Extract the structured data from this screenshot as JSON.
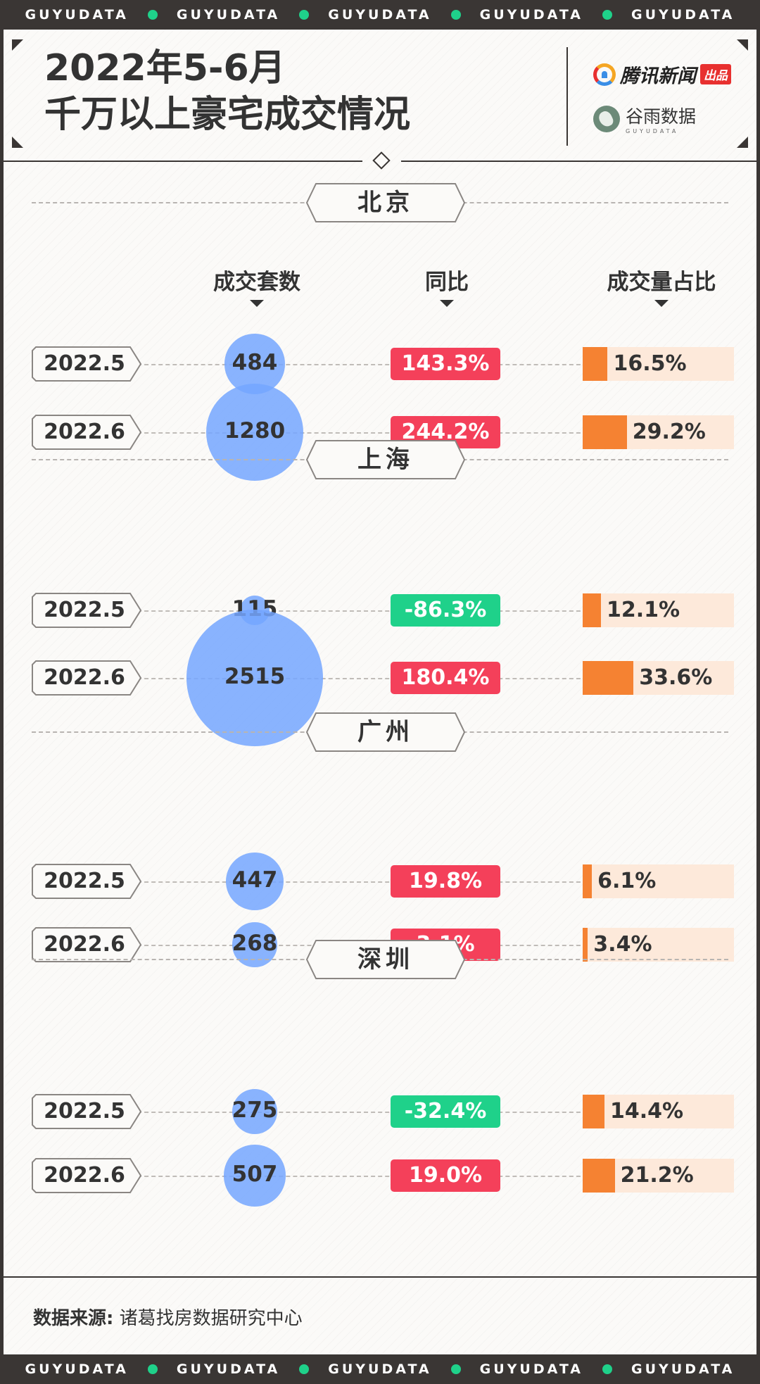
{
  "band_text": "GUYUDATA",
  "header": {
    "title_line1": "2022年5-6月",
    "title_line2": "千万以上豪宅成交情况",
    "brand1_name": "腾讯新闻",
    "brand1_tag": "出品",
    "brand2_name": "谷雨数据",
    "brand2_sub": "GUYUDATA"
  },
  "columns": {
    "count": "成交套数",
    "yoy": "同比",
    "share": "成交量占比"
  },
  "colors": {
    "positive": "#f4405a",
    "negative": "#1fd18a",
    "bubble": "#74a6ff",
    "share_fill": "#f58232",
    "share_bg": "#fde9da"
  },
  "chart_data": {
    "type": "table",
    "cities": [
      {
        "name": "北京",
        "rows": [
          {
            "month": "2022.5",
            "count": 484,
            "count_label": "484",
            "yoy": 143.3,
            "yoy_label": "143.3%",
            "share": 16.5,
            "share_label": "16.5%"
          },
          {
            "month": "2022.6",
            "count": 1280,
            "count_label": "1280",
            "yoy": 244.2,
            "yoy_label": "244.2%",
            "share": 29.2,
            "share_label": "29.2%"
          }
        ]
      },
      {
        "name": "上海",
        "rows": [
          {
            "month": "2022.5",
            "count": 115,
            "count_label": "115",
            "yoy": -86.3,
            "yoy_label": "-86.3%",
            "share": 12.1,
            "share_label": "12.1%"
          },
          {
            "month": "2022.6",
            "count": 2515,
            "count_label": "2515",
            "yoy": 180.4,
            "yoy_label": "180.4%",
            "share": 33.6,
            "share_label": "33.6%"
          }
        ]
      },
      {
        "name": "广州",
        "rows": [
          {
            "month": "2022.5",
            "count": 447,
            "count_label": "447",
            "yoy": 19.8,
            "yoy_label": "19.8%",
            "share": 6.1,
            "share_label": "6.1%"
          },
          {
            "month": "2022.6",
            "count": 268,
            "count_label": "268",
            "yoy": 3.1,
            "yoy_label": "3.1%",
            "share": 3.4,
            "share_label": "3.4%"
          }
        ]
      },
      {
        "name": "深圳",
        "rows": [
          {
            "month": "2022.5",
            "count": 275,
            "count_label": "275",
            "yoy": -32.4,
            "yoy_label": "-32.4%",
            "share": 14.4,
            "share_label": "14.4%"
          },
          {
            "month": "2022.6",
            "count": 507,
            "count_label": "507",
            "yoy": 19.0,
            "yoy_label": "19.0%",
            "share": 21.2,
            "share_label": "21.2%"
          }
        ]
      }
    ]
  },
  "source": {
    "label": "数据来源:",
    "text": "诸葛找房数据研究中心"
  }
}
